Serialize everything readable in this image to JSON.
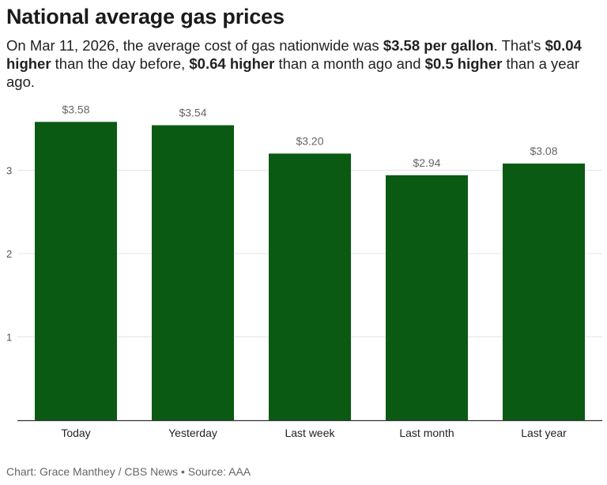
{
  "header": {
    "title": "National average gas prices",
    "subtitle": {
      "t1": "On Mar 11, 2026, the average cost of gas nationwide was ",
      "b1": "$3.58 per gallon",
      "t2": ". That's ",
      "b2": "$0.04 higher",
      "t3": " than the day before, ",
      "b3": "$0.64 higher",
      "t4": " than a month ago and ",
      "b4": "$0.5 higher",
      "t5": " than a year ago."
    }
  },
  "footer": {
    "credit": "Chart: Grace Manthey / CBS News",
    "separator": "•",
    "source": "Source: AAA"
  },
  "chart_data": {
    "type": "bar",
    "title": "National average gas prices",
    "categories": [
      "Today",
      "Yesterday",
      "Last week",
      "Last month",
      "Last year"
    ],
    "values": [
      3.58,
      3.54,
      3.2,
      2.94,
      3.08
    ],
    "data_labels": [
      "$3.58",
      "$3.54",
      "$3.20",
      "$2.94",
      "$3.08"
    ],
    "y_ticks": [
      1,
      2,
      3
    ],
    "ylim": [
      0,
      3.8
    ],
    "xlabel": "",
    "ylabel": "",
    "grid": true,
    "colors": {
      "bar": "#0b5a13",
      "grid": "#e4e4e4",
      "axis": "#333333"
    }
  }
}
